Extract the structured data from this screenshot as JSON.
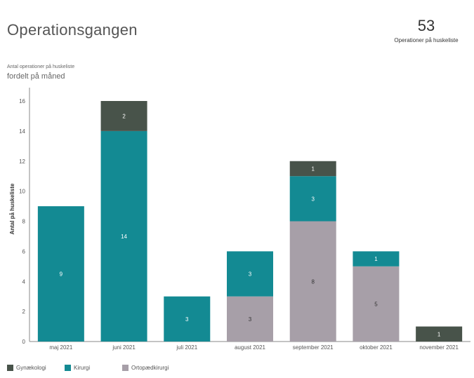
{
  "header": {
    "title": "Operationsgangen",
    "kpi_value": "53",
    "kpi_label": "Operationer på huskeliste"
  },
  "subtitle_small": "Antal operationer på huskeliste",
  "subtitle_large": "fordelt på måned",
  "colors": {
    "Gynækologi": "#48534a",
    "Kirurgi": "#138a93",
    "Ortopædkirurgi": "#a79fa8"
  },
  "chart_data": {
    "type": "bar",
    "stacked": true,
    "categories": [
      "maj 2021",
      "juni 2021",
      "juli 2021",
      "august 2021",
      "september 2021",
      "oktober 2021",
      "november 2021"
    ],
    "series": [
      {
        "name": "Ortopædkirurgi",
        "values": [
          0,
          0,
          0,
          3,
          8,
          5,
          0
        ]
      },
      {
        "name": "Kirurgi",
        "values": [
          9,
          14,
          3,
          3,
          3,
          1,
          0
        ]
      },
      {
        "name": "Gynækologi",
        "values": [
          0,
          2,
          0,
          0,
          1,
          0,
          1
        ]
      }
    ],
    "ylabel": "Antal på huskeliste",
    "xlabel": "",
    "ylim": [
      0,
      16
    ],
    "yticks": [
      0,
      2,
      4,
      6,
      8,
      10,
      12,
      14,
      16
    ],
    "legend_position": "bottom-left",
    "legend": [
      "Gynækologi",
      "Kirurgi",
      "Ortopædkirurgi"
    ]
  }
}
